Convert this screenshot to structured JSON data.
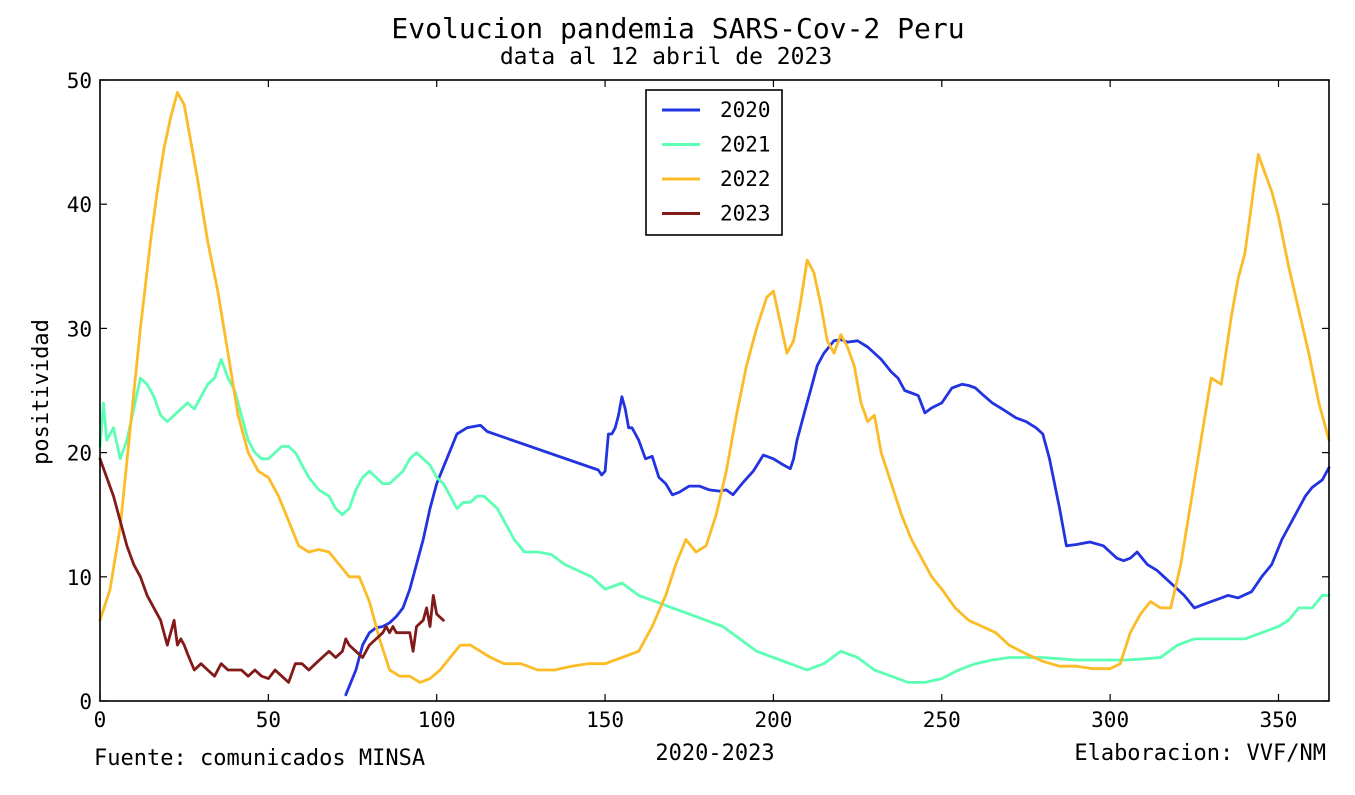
{
  "chart_data": {
    "type": "line",
    "title": "Evolucion pandemia SARS-Cov-2 Peru",
    "subtitle": "data al 12 abril de 2023",
    "xlabel": "2020-2023",
    "ylabel": "positividad",
    "xlim": [
      0,
      365
    ],
    "ylim": [
      0,
      50
    ],
    "xticks": [
      0,
      50,
      100,
      150,
      200,
      250,
      300,
      350
    ],
    "yticks": [
      0,
      10,
      20,
      30,
      40,
      50
    ],
    "grid": false,
    "legend_position": "top-center",
    "source_note": "Fuente: comunicados MINSA",
    "credit_note": "Elaboracion: VVF/NM",
    "series": [
      {
        "name": "2020",
        "color": "#2233e0",
        "x": [
          73,
          76,
          78,
          80,
          82,
          84,
          86,
          88,
          90,
          92,
          94,
          96,
          98,
          100,
          103,
          106,
          109,
          111,
          113,
          115,
          148,
          149,
          150,
          151,
          152,
          153,
          154,
          155,
          156,
          157,
          158,
          159,
          160,
          162,
          164,
          166,
          168,
          170,
          172,
          175,
          178,
          181,
          184,
          186,
          188,
          191,
          194,
          197,
          200,
          203,
          205,
          206,
          207,
          209,
          211,
          213,
          215,
          218,
          220,
          222,
          225,
          228,
          232,
          235,
          237,
          239,
          241,
          243,
          245,
          247,
          250,
          253,
          256,
          258,
          260,
          262,
          265,
          268,
          272,
          275,
          278,
          280,
          282,
          285,
          287,
          290,
          294,
          298,
          300,
          302,
          304,
          306,
          308,
          311,
          314,
          316,
          318,
          320,
          322,
          325,
          328,
          330,
          332,
          335,
          338,
          342,
          345,
          348,
          351,
          354,
          356,
          358,
          360,
          363,
          365
        ],
        "y": [
          0.5,
          2.5,
          4.5,
          5.5,
          5.9,
          6.0,
          6.3,
          6.8,
          7.5,
          9.0,
          11.0,
          13.0,
          15.5,
          17.5,
          19.5,
          21.5,
          22.0,
          22.1,
          22.2,
          21.7,
          18.6,
          18.2,
          18.5,
          21.5,
          21.5,
          22.0,
          23.0,
          24.5,
          23.5,
          22.0,
          22.0,
          21.5,
          21.0,
          19.5,
          19.7,
          18.0,
          17.5,
          16.6,
          16.8,
          17.3,
          17.3,
          17.0,
          16.9,
          17.0,
          16.6,
          17.6,
          18.5,
          19.8,
          19.5,
          19.0,
          18.7,
          19.5,
          21.0,
          23.0,
          25.0,
          27.0,
          28.0,
          29.0,
          29.1,
          28.9,
          29.0,
          28.5,
          27.5,
          26.5,
          26.0,
          25.0,
          24.8,
          24.6,
          23.2,
          23.6,
          24.0,
          25.2,
          25.5,
          25.4,
          25.2,
          24.7,
          24.0,
          23.5,
          22.8,
          22.5,
          22.0,
          21.5,
          19.5,
          15.5,
          12.5,
          12.6,
          12.8,
          12.5,
          12.0,
          11.5,
          11.3,
          11.5,
          12.0,
          11.0,
          10.5,
          10.0,
          9.5,
          9.0,
          8.5,
          7.5,
          7.8,
          8.0,
          8.2,
          8.5,
          8.3,
          8.8,
          10.0,
          11.0,
          13.0,
          14.5,
          15.5,
          16.5,
          17.2,
          17.8,
          18.8
        ]
      },
      {
        "name": "2021",
        "color": "#5cffb4",
        "x": [
          0,
          1,
          2,
          4,
          6,
          8,
          10,
          12,
          14,
          16,
          18,
          20,
          22,
          24,
          26,
          28,
          30,
          32,
          34,
          36,
          38,
          40,
          42,
          44,
          46,
          48,
          50,
          52,
          54,
          56,
          58,
          60,
          62,
          65,
          68,
          70,
          72,
          74,
          76,
          78,
          80,
          82,
          84,
          86,
          88,
          90,
          92,
          94,
          96,
          98,
          100,
          102,
          104,
          106,
          108,
          110,
          112,
          114,
          116,
          118,
          120,
          123,
          126,
          130,
          134,
          138,
          142,
          146,
          150,
          155,
          160,
          165,
          170,
          175,
          180,
          185,
          190,
          195,
          200,
          205,
          210,
          215,
          220,
          225,
          230,
          235,
          240,
          245,
          250,
          255,
          260,
          265,
          270,
          275,
          280,
          285,
          290,
          295,
          300,
          305,
          310,
          315,
          320,
          325,
          330,
          335,
          340,
          345,
          350,
          353,
          356,
          360,
          363,
          365
        ],
        "y": [
          20.5,
          24.0,
          21.0,
          22.0,
          19.5,
          21.0,
          23.5,
          26.0,
          25.5,
          24.5,
          23.0,
          22.5,
          23.0,
          23.5,
          24.0,
          23.5,
          24.5,
          25.5,
          26.0,
          27.5,
          26.0,
          25.0,
          23.0,
          21.0,
          20.0,
          19.5,
          19.5,
          20.0,
          20.5,
          20.5,
          20.0,
          19.0,
          18.0,
          17.0,
          16.5,
          15.5,
          15.0,
          15.5,
          17.0,
          18.0,
          18.5,
          18.0,
          17.5,
          17.5,
          18.0,
          18.5,
          19.5,
          20.0,
          19.5,
          19.0,
          18.0,
          17.5,
          16.5,
          15.5,
          16.0,
          16.0,
          16.5,
          16.5,
          16.0,
          15.5,
          14.5,
          13.0,
          12.0,
          12.0,
          11.8,
          11.0,
          10.5,
          10.0,
          9.0,
          9.5,
          8.5,
          8.0,
          7.5,
          7.0,
          6.5,
          6.0,
          5.0,
          4.0,
          3.5,
          3.0,
          2.5,
          3.0,
          4.0,
          3.5,
          2.5,
          2.0,
          1.5,
          1.5,
          1.8,
          2.5,
          3.0,
          3.3,
          3.5,
          3.5,
          3.5,
          3.4,
          3.3,
          3.3,
          3.3,
          3.3,
          3.4,
          3.5,
          4.5,
          5.0,
          5.0,
          5.0,
          5.0,
          5.5,
          6.0,
          6.5,
          7.5,
          7.5,
          8.5,
          8.5
        ]
      },
      {
        "name": "2022",
        "color": "#fbbc27",
        "x": [
          0,
          3,
          6,
          9,
          12,
          15,
          17,
          19,
          21,
          23,
          25,
          27,
          29,
          32,
          35,
          38,
          41,
          44,
          47,
          50,
          53,
          56,
          59,
          62,
          65,
          68,
          71,
          74,
          77,
          80,
          83,
          86,
          89,
          92,
          95,
          98,
          101,
          104,
          107,
          110,
          113,
          116,
          120,
          125,
          130,
          135,
          140,
          145,
          150,
          155,
          160,
          164,
          168,
          171,
          174,
          177,
          180,
          183,
          186,
          189,
          192,
          195,
          198,
          200,
          202,
          204,
          206,
          208,
          210,
          212,
          214,
          216,
          218,
          220,
          222,
          224,
          226,
          228,
          230,
          232,
          235,
          238,
          241,
          244,
          247,
          250,
          254,
          258,
          262,
          266,
          270,
          275,
          280,
          285,
          290,
          295,
          300,
          303,
          306,
          309,
          312,
          315,
          318,
          321,
          324,
          327,
          330,
          333,
          336,
          338,
          340,
          342,
          344,
          346,
          348,
          350,
          353,
          356,
          359,
          362,
          365
        ],
        "y": [
          6.5,
          9.0,
          14.0,
          22.0,
          30.0,
          37.0,
          41.0,
          44.5,
          47.0,
          49.0,
          48.0,
          45.0,
          42.0,
          37.0,
          33.0,
          28.0,
          23.0,
          20.0,
          18.5,
          18.0,
          16.5,
          14.5,
          12.5,
          12.0,
          12.2,
          12.0,
          11.0,
          10.0,
          10.0,
          8.0,
          5.0,
          2.5,
          2.0,
          2.0,
          1.5,
          1.8,
          2.5,
          3.5,
          4.5,
          4.5,
          4.0,
          3.5,
          3.0,
          3.0,
          2.5,
          2.5,
          2.8,
          3.0,
          3.0,
          3.5,
          4.0,
          6.0,
          8.5,
          11.0,
          13.0,
          12.0,
          12.5,
          15.0,
          18.5,
          23.0,
          27.0,
          30.0,
          32.5,
          33.0,
          30.5,
          28.0,
          29.0,
          32.0,
          35.5,
          34.5,
          32.0,
          29.0,
          28.0,
          29.5,
          28.5,
          27.0,
          24.0,
          22.5,
          23.0,
          20.0,
          17.5,
          15.0,
          13.0,
          11.5,
          10.0,
          9.0,
          7.5,
          6.5,
          6.0,
          5.5,
          4.5,
          3.8,
          3.2,
          2.8,
          2.8,
          2.6,
          2.6,
          3.0,
          5.5,
          7.0,
          8.0,
          7.5,
          7.5,
          11.0,
          16.0,
          21.0,
          26.0,
          25.5,
          31.0,
          34.0,
          36.0,
          40.0,
          44.0,
          42.5,
          41.0,
          39.0,
          35.0,
          31.5,
          28.0,
          24.0,
          21.0
        ]
      },
      {
        "name": "2023",
        "color": "#821a1a",
        "x": [
          0,
          2,
          4,
          6,
          8,
          10,
          12,
          14,
          16,
          18,
          20,
          21,
          22,
          23,
          24,
          25,
          26,
          28,
          30,
          32,
          34,
          36,
          38,
          40,
          42,
          44,
          46,
          48,
          50,
          52,
          54,
          56,
          58,
          60,
          62,
          64,
          66,
          68,
          70,
          72,
          73,
          74,
          76,
          78,
          80,
          82,
          84,
          85,
          86,
          87,
          88,
          90,
          92,
          93,
          94,
          96,
          97,
          98,
          99,
          100,
          102
        ],
        "y": [
          19.5,
          18.0,
          16.5,
          14.5,
          12.5,
          11.0,
          10.0,
          8.5,
          7.5,
          6.5,
          4.5,
          5.5,
          6.5,
          4.5,
          5.0,
          4.5,
          3.8,
          2.5,
          3.0,
          2.5,
          2.0,
          3.0,
          2.5,
          2.5,
          2.5,
          2.0,
          2.5,
          2.0,
          1.8,
          2.5,
          2.0,
          1.5,
          3.0,
          3.0,
          2.5,
          3.0,
          3.5,
          4.0,
          3.5,
          4.0,
          5.0,
          4.5,
          4.0,
          3.5,
          4.5,
          5.0,
          5.5,
          6.0,
          5.5,
          6.0,
          5.5,
          5.5,
          5.5,
          4.0,
          6.0,
          6.5,
          7.5,
          6.0,
          8.5,
          7.0,
          6.5
        ]
      }
    ]
  }
}
